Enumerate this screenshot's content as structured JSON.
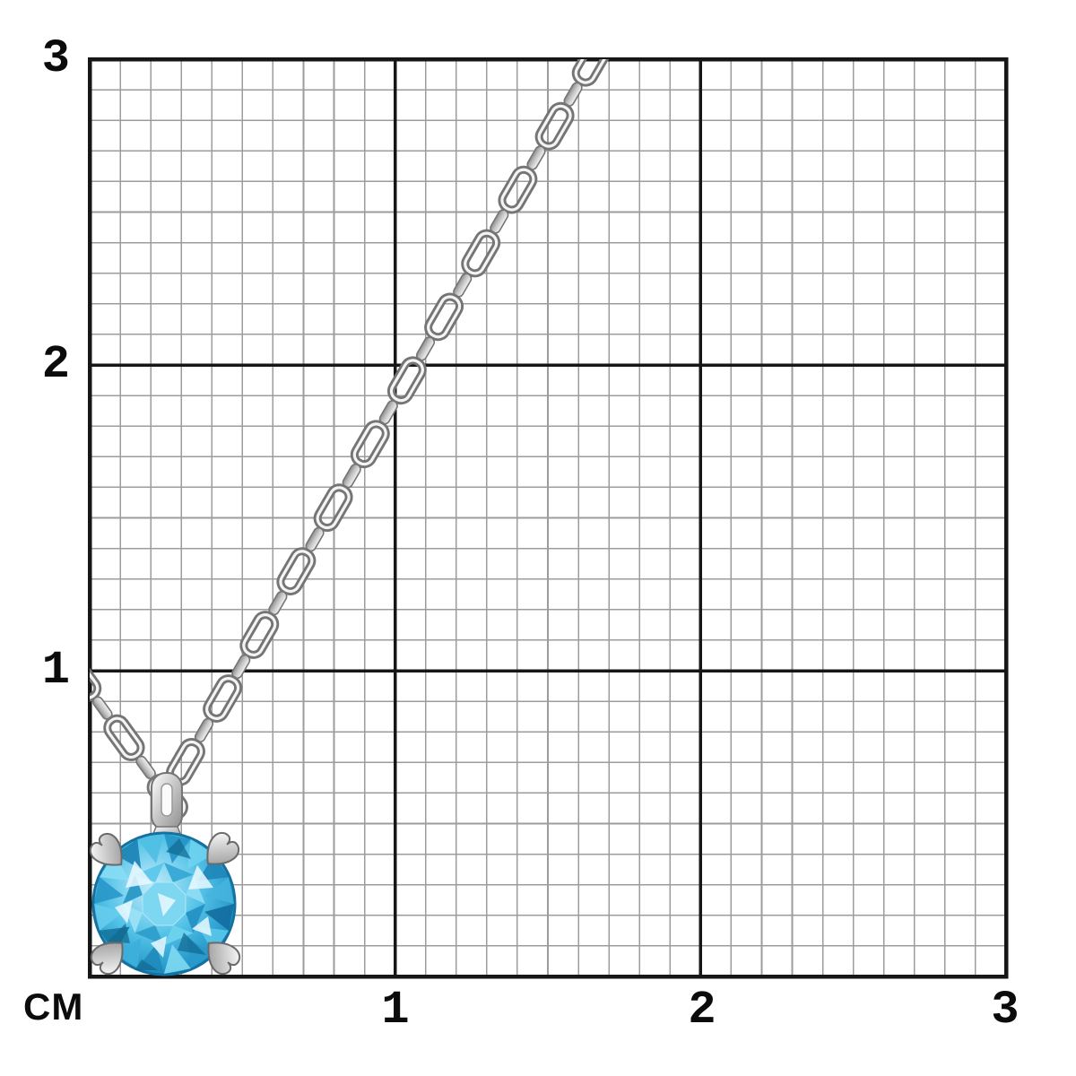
{
  "figure": {
    "label": "silver-chain-blue-gemstone-pendant-on-centimeter-grid"
  },
  "ruler": {
    "unit_label": "CM",
    "y_labels": [
      {
        "text": "3",
        "cm": 3
      },
      {
        "text": "2",
        "cm": 2
      },
      {
        "text": "1",
        "cm": 1
      }
    ],
    "x_labels": [
      {
        "text": "1",
        "cm": 1
      },
      {
        "text": "2",
        "cm": 2
      },
      {
        "text": "3",
        "cm": 3
      }
    ],
    "cm_min": 0,
    "cm_max": 3,
    "minor_divisions_per_cm": 10
  },
  "colors": {
    "background": "#ffffff",
    "grid_minor": "#9c9c9c",
    "grid_major": "#161616",
    "label_text": "#0b0b0b",
    "metal_outline": "#757575",
    "metal_light": "#f4f4f4",
    "metal_mid": "#c4c4c4",
    "metal_dark": "#8c8c8c",
    "stone_light": "#c3ecfa",
    "stone_mid": "#55c3e8",
    "stone_deep": "#2094c6",
    "stone_dark": "#11688f"
  }
}
